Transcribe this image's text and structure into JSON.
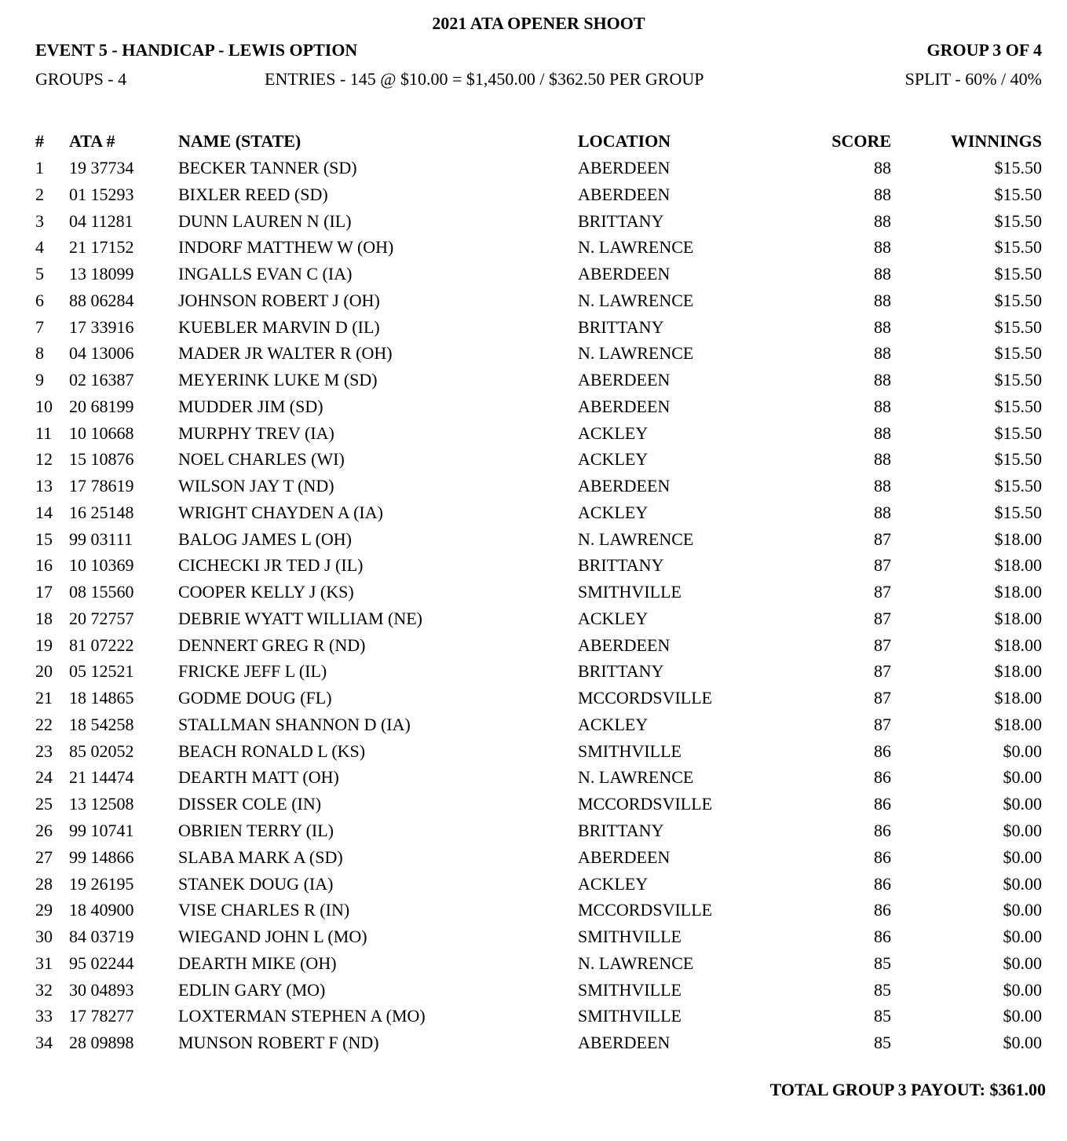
{
  "title": "2021 ATA OPENER SHOOT",
  "event": "EVENT 5 - HANDICAP - LEWIS OPTION",
  "group": "GROUP 3 OF 4",
  "groups": "GROUPS - 4",
  "entries": "ENTRIES - 145 @ $10.00 = $1,450.00 / $362.50 PER GROUP",
  "split": "SPLIT - 60% / 40%",
  "columns": [
    "#",
    "ATA #",
    "NAME (STATE)",
    "LOCATION",
    "SCORE",
    "WINNINGS"
  ],
  "rows": [
    [
      "1",
      "19 37734",
      "BECKER TANNER (SD)",
      "ABERDEEN",
      "88",
      "$15.50"
    ],
    [
      "2",
      "01 15293",
      "BIXLER REED (SD)",
      "ABERDEEN",
      "88",
      "$15.50"
    ],
    [
      "3",
      "04 11281",
      "DUNN LAUREN N (IL)",
      "BRITTANY",
      "88",
      "$15.50"
    ],
    [
      "4",
      "21 17152",
      "INDORF MATTHEW W (OH)",
      "N. LAWRENCE",
      "88",
      "$15.50"
    ],
    [
      "5",
      "13 18099",
      "INGALLS EVAN C (IA)",
      "ABERDEEN",
      "88",
      "$15.50"
    ],
    [
      "6",
      "88 06284",
      "JOHNSON ROBERT J (OH)",
      "N. LAWRENCE",
      "88",
      "$15.50"
    ],
    [
      "7",
      "17 33916",
      "KUEBLER MARVIN D (IL)",
      "BRITTANY",
      "88",
      "$15.50"
    ],
    [
      "8",
      "04 13006",
      "MADER JR WALTER R (OH)",
      "N. LAWRENCE",
      "88",
      "$15.50"
    ],
    [
      "9",
      "02 16387",
      "MEYERINK LUKE M (SD)",
      "ABERDEEN",
      "88",
      "$15.50"
    ],
    [
      "10",
      "20 68199",
      "MUDDER JIM (SD)",
      "ABERDEEN",
      "88",
      "$15.50"
    ],
    [
      "11",
      "10 10668",
      "MURPHY TREV (IA)",
      "ACKLEY",
      "88",
      "$15.50"
    ],
    [
      "12",
      "15 10876",
      "NOEL CHARLES (WI)",
      "ACKLEY",
      "88",
      "$15.50"
    ],
    [
      "13",
      "17 78619",
      "WILSON JAY T (ND)",
      "ABERDEEN",
      "88",
      "$15.50"
    ],
    [
      "14",
      "16 25148",
      "WRIGHT CHAYDEN A (IA)",
      "ACKLEY",
      "88",
      "$15.50"
    ],
    [
      "15",
      "99 03111",
      "BALOG JAMES L (OH)",
      "N. LAWRENCE",
      "87",
      "$18.00"
    ],
    [
      "16",
      "10 10369",
      "CICHECKI JR TED J (IL)",
      "BRITTANY",
      "87",
      "$18.00"
    ],
    [
      "17",
      "08 15560",
      "COOPER KELLY J (KS)",
      "SMITHVILLE",
      "87",
      "$18.00"
    ],
    [
      "18",
      "20 72757",
      "DEBRIE WYATT WILLIAM (NE)",
      "ACKLEY",
      "87",
      "$18.00"
    ],
    [
      "19",
      "81 07222",
      "DENNERT GREG R (ND)",
      "ABERDEEN",
      "87",
      "$18.00"
    ],
    [
      "20",
      "05 12521",
      "FRICKE JEFF L (IL)",
      "BRITTANY",
      "87",
      "$18.00"
    ],
    [
      "21",
      "18 14865",
      "GODME DOUG (FL)",
      "MCCORDSVILLE",
      "87",
      "$18.00"
    ],
    [
      "22",
      "18 54258",
      "STALLMAN SHANNON D (IA)",
      "ACKLEY",
      "87",
      "$18.00"
    ],
    [
      "23",
      "85 02052",
      "BEACH RONALD L (KS)",
      "SMITHVILLE",
      "86",
      "$0.00"
    ],
    [
      "24",
      "21 14474",
      "DEARTH MATT (OH)",
      "N. LAWRENCE",
      "86",
      "$0.00"
    ],
    [
      "25",
      "13 12508",
      "DISSER COLE (IN)",
      "MCCORDSVILLE",
      "86",
      "$0.00"
    ],
    [
      "26",
      "99 10741",
      "OBRIEN TERRY (IL)",
      "BRITTANY",
      "86",
      "$0.00"
    ],
    [
      "27",
      "99 14866",
      "SLABA MARK A (SD)",
      "ABERDEEN",
      "86",
      "$0.00"
    ],
    [
      "28",
      "19 26195",
      "STANEK DOUG (IA)",
      "ACKLEY",
      "86",
      "$0.00"
    ],
    [
      "29",
      "18 40900",
      "VISE CHARLES R (IN)",
      "MCCORDSVILLE",
      "86",
      "$0.00"
    ],
    [
      "30",
      "84 03719",
      "WIEGAND JOHN L (MO)",
      "SMITHVILLE",
      "86",
      "$0.00"
    ],
    [
      "31",
      "95 02244",
      "DEARTH MIKE (OH)",
      "N. LAWRENCE",
      "85",
      "$0.00"
    ],
    [
      "32",
      "30 04893",
      "EDLIN GARY (MO)",
      "SMITHVILLE",
      "85",
      "$0.00"
    ],
    [
      "33",
      "17 78277",
      "LOXTERMAN STEPHEN A (MO)",
      "SMITHVILLE",
      "85",
      "$0.00"
    ],
    [
      "34",
      "28 09898",
      "MUNSON ROBERT F (ND)",
      "ABERDEEN",
      "85",
      "$0.00"
    ]
  ],
  "total": "TOTAL GROUP 3 PAYOUT: $361.00"
}
